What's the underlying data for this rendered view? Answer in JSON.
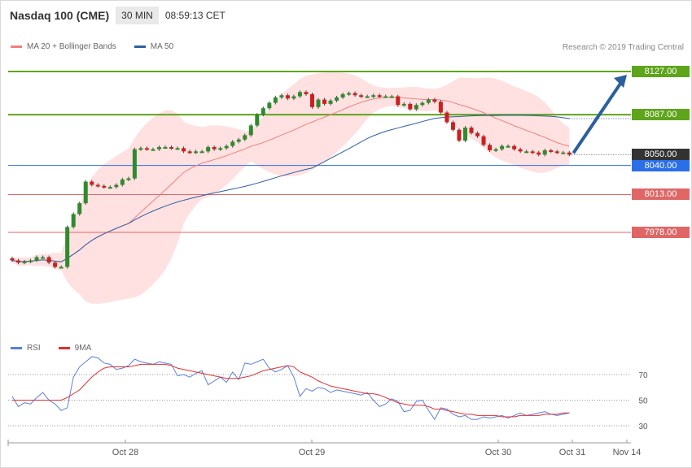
{
  "header": {
    "symbol": "Nasdaq 100 (CME)",
    "timeframe": "30 MIN",
    "time": "08:59:13 CET"
  },
  "legend_main": [
    {
      "label": "MA 20 + Bollinger Bands",
      "color": "#f08080"
    },
    {
      "label": "MA 50",
      "color": "#2e5fa3"
    }
  ],
  "credit": "Research © 2019 Trading Central",
  "legend_rsi": [
    {
      "label": "RSI",
      "color": "#5b7fdb"
    },
    {
      "label": "9MA",
      "color": "#e03030"
    }
  ],
  "price_labels": [
    {
      "text": "8127.00",
      "value": 8127,
      "color": "#5ea51b",
      "kind": "resistance"
    },
    {
      "text": "8087.00",
      "value": 8087,
      "color": "#5ea51b",
      "kind": "resistance"
    },
    {
      "text": "8050.00",
      "value": 8050,
      "color": "#333333",
      "kind": "last"
    },
    {
      "text": "8040.00",
      "value": 8040,
      "color": "#2a6ee8",
      "kind": "pivot"
    },
    {
      "text": "8013.00",
      "value": 8013,
      "color": "#e06666",
      "kind": "support"
    },
    {
      "text": "7978.00",
      "value": 7978,
      "color": "#e06666",
      "kind": "support"
    }
  ],
  "x_axis_labels": [
    "Oct 28",
    "Oct 29",
    "Oct 30",
    "Oct 31",
    "Nov 14"
  ],
  "rsi_axis_labels": [
    "70",
    "50",
    "30"
  ],
  "chart_data": {
    "type": "candlestick",
    "title": "Nasdaq 100 (CME)",
    "timeframe": "30 MIN",
    "series": [
      {
        "name": "MA 20 + Bollinger Bands",
        "kind": "band"
      },
      {
        "name": "MA 50",
        "kind": "line"
      }
    ],
    "close": [
      7952,
      7950,
      7951,
      7952,
      7955,
      7955,
      7950,
      7946,
      7946,
      7983,
      7995,
      8005,
      8025,
      8022,
      8021,
      8020,
      8020,
      8022,
      8027,
      8028,
      8055,
      8056,
      8055,
      8055,
      8057,
      8057,
      8056,
      8056,
      8053,
      8052,
      8053,
      8053,
      8057,
      8055,
      8056,
      8058,
      8062,
      8064,
      8068,
      8077,
      8087,
      8093,
      8098,
      8103,
      8105,
      8102,
      8104,
      8108,
      8106,
      8094,
      8101,
      8097,
      8100,
      8103,
      8106,
      8107,
      8105,
      8104,
      8104,
      8105,
      8104,
      8104,
      8104,
      8096,
      8097,
      8092,
      8096,
      8098,
      8101,
      8099,
      8089,
      8080,
      8073,
      8063,
      8075,
      8070,
      8067,
      8059,
      8054,
      8055,
      8058,
      8058,
      8055,
      8053,
      8053,
      8052,
      8050,
      8054,
      8053,
      8052,
      8052,
      8050
    ],
    "resistance_levels": [
      8127,
      8087
    ],
    "support_levels": [
      8013,
      7978
    ],
    "pivot": 8040,
    "last": 8050,
    "target": 8127,
    "rsi": [
      53,
      45,
      48,
      47,
      52,
      56,
      50,
      47,
      42,
      44,
      68,
      76,
      80,
      84,
      83,
      79,
      78,
      74,
      75,
      77,
      82,
      80,
      79,
      78,
      80,
      79,
      78,
      69,
      70,
      68,
      71,
      73,
      62,
      65,
      68,
      64,
      72,
      66,
      79,
      78,
      80,
      82,
      75,
      72,
      74,
      77,
      68,
      53,
      59,
      57,
      60,
      59,
      56,
      58,
      57,
      56,
      55,
      54,
      56,
      50,
      45,
      47,
      51,
      49,
      41,
      42,
      49,
      50,
      42,
      35,
      44,
      43,
      39,
      37,
      38,
      35,
      35,
      37,
      36,
      37,
      38,
      36,
      38,
      40,
      38,
      39,
      40,
      41,
      39,
      38,
      39,
      40
    ],
    "rsi_ma": [
      50,
      50,
      50,
      50,
      50,
      50,
      50,
      50,
      50,
      52,
      55,
      58,
      63,
      68,
      72,
      75,
      76,
      76,
      76,
      76,
      77,
      78,
      78,
      78,
      78,
      78,
      77,
      75,
      74,
      73,
      72,
      71,
      70,
      69,
      68,
      67,
      67,
      67,
      68,
      69,
      71,
      73,
      74,
      75,
      76,
      77,
      76,
      72,
      70,
      68,
      65,
      63,
      61,
      60,
      59,
      58,
      57,
      56,
      55,
      55,
      54,
      52,
      50,
      48,
      47,
      46,
      46,
      46,
      45,
      43,
      43,
      42,
      41,
      40,
      39,
      39,
      38,
      38,
      38,
      38,
      37,
      37,
      37,
      38,
      38,
      38,
      38,
      39,
      39,
      39,
      40,
      40
    ],
    "rsi_levels": [
      70,
      50,
      30
    ],
    "x_labels": [
      "Oct 28",
      "Oct 29",
      "Oct 30",
      "Oct 31",
      "Nov 14"
    ]
  }
}
